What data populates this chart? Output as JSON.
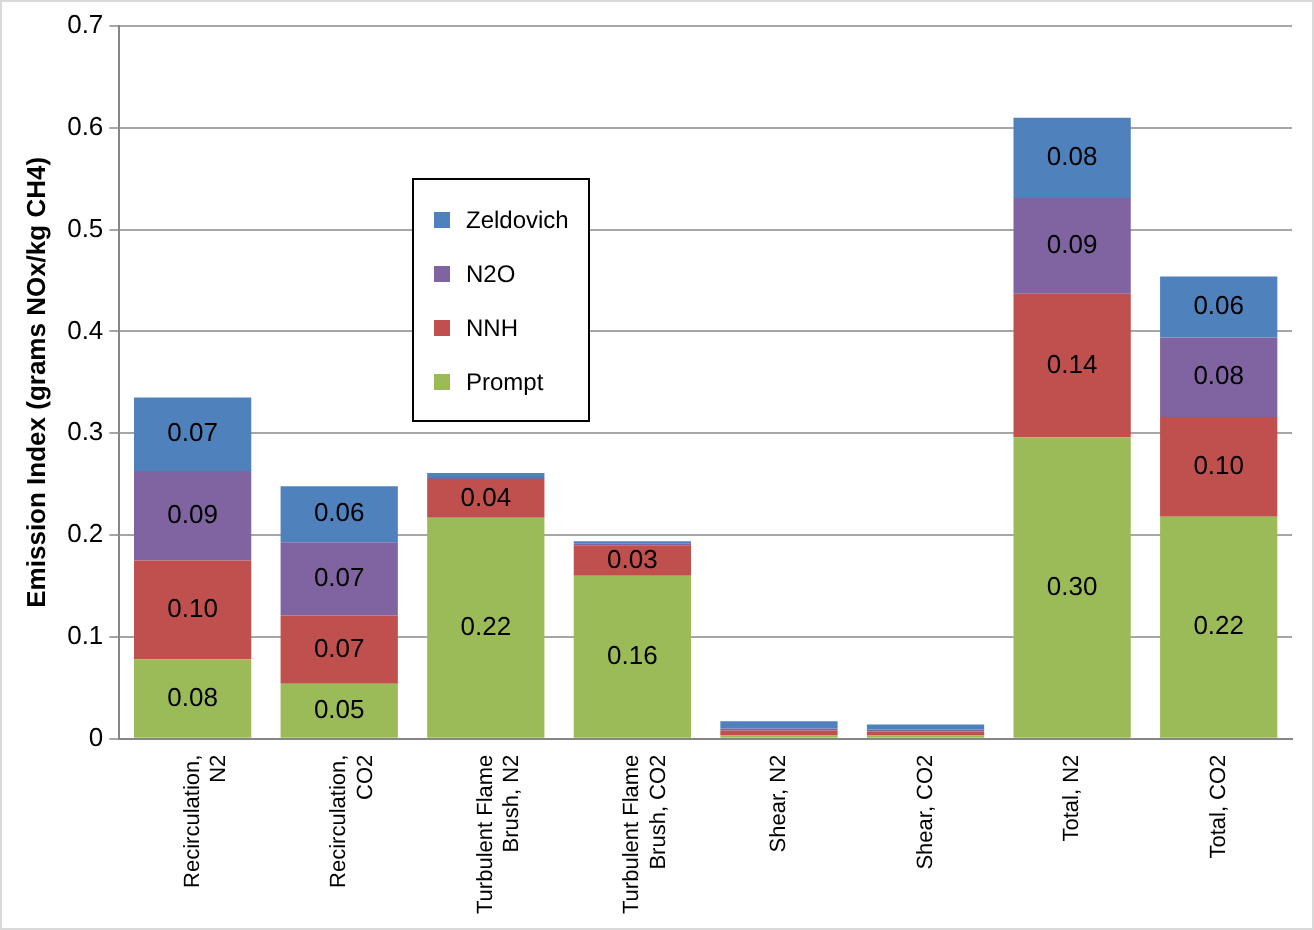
{
  "chart_data": {
    "type": "bar",
    "stacked": true,
    "ylabel": "Emission Index (grams NOx/kg CH4)",
    "categories": [
      "Recirculation, N2",
      "Recirculation, CO2",
      "Turbulent Flame Brush, N2",
      "Turbulent Flame Brush, CO2",
      "Shear, N2",
      "Shear, CO2",
      "Total, N2",
      "Total, CO2"
    ],
    "series": [
      {
        "name": "Prompt",
        "color": "#9bbb59",
        "values": [
          0.078,
          0.054,
          0.217,
          0.16,
          0.003,
          0.003,
          0.296,
          0.218
        ],
        "value_labels": [
          "0.08",
          "0.05",
          "0.22",
          "0.16",
          null,
          null,
          "0.30",
          "0.22"
        ]
      },
      {
        "name": "NNH",
        "color": "#c0504d",
        "values": [
          0.097,
          0.067,
          0.038,
          0.03,
          0.005,
          0.004,
          0.141,
          0.098
        ],
        "value_labels": [
          "0.10",
          "0.07",
          "0.04",
          "0.03",
          null,
          null,
          "0.14",
          "0.10"
        ]
      },
      {
        "name": "N2O",
        "color": "#8064a2",
        "values": [
          0.088,
          0.072,
          0.002,
          0.002,
          0.002,
          0.002,
          0.094,
          0.078
        ],
        "value_labels": [
          "0.09",
          "0.07",
          null,
          null,
          null,
          null,
          "0.09",
          "0.08"
        ]
      },
      {
        "name": "Zeldovich",
        "color": "#4f81bd",
        "values": [
          0.072,
          0.055,
          0.004,
          0.002,
          0.007,
          0.005,
          0.079,
          0.06
        ],
        "value_labels": [
          "0.07",
          "0.06",
          null,
          null,
          null,
          null,
          "0.08",
          "0.06"
        ]
      }
    ],
    "ylim": [
      0,
      0.7
    ],
    "yticks": [
      0,
      0.1,
      0.2,
      0.3,
      0.4,
      0.5,
      0.6,
      0.7
    ],
    "grid": "y",
    "legend": "top left"
  }
}
